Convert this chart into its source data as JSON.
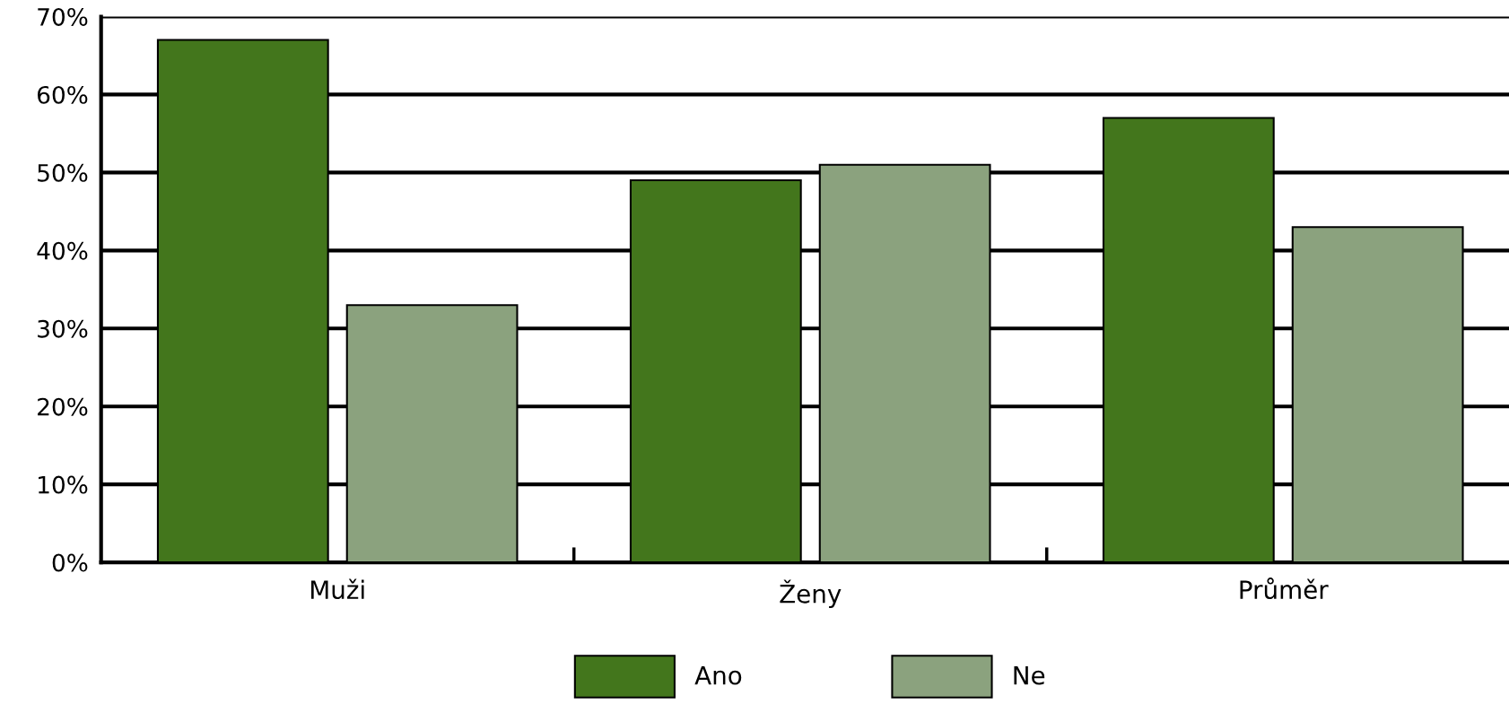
{
  "chart_data": {
    "type": "bar",
    "categories": [
      "Muži",
      "Ženy",
      "Průměr"
    ],
    "series": [
      {
        "name": "Ano",
        "color": "#43761c",
        "values": [
          67,
          49,
          57
        ]
      },
      {
        "name": "Ne",
        "color": "#8ba27e",
        "values": [
          33,
          51,
          43
        ]
      }
    ],
    "ylim": [
      0,
      70
    ],
    "yticks": [
      {
        "value": 0,
        "label": "0%"
      },
      {
        "value": 10,
        "label": "10%"
      },
      {
        "value": 20,
        "label": "20%"
      },
      {
        "value": 30,
        "label": "30%"
      },
      {
        "value": 40,
        "label": "40%"
      },
      {
        "value": 50,
        "label": "50%"
      },
      {
        "value": 60,
        "label": "60%"
      },
      {
        "value": 70,
        "label": "70%"
      }
    ],
    "grid": "y",
    "legend": "bottom"
  }
}
